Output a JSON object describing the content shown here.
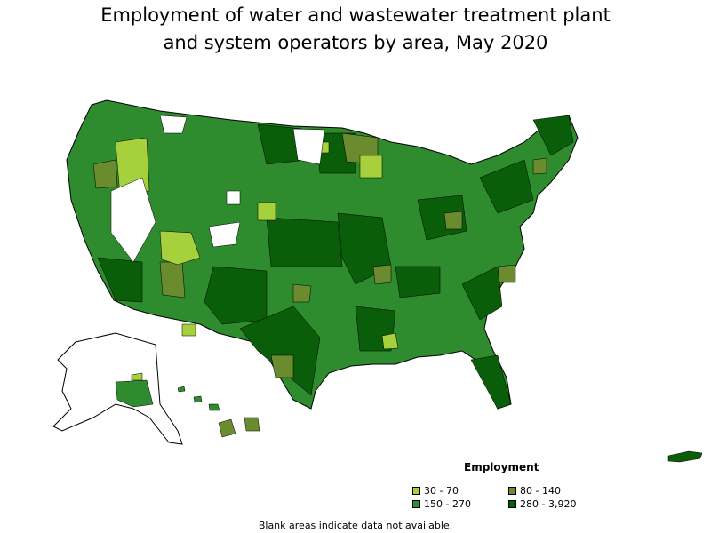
{
  "title": {
    "line1": "Employment of water and wastewater treatment plant",
    "line2": "and system operators by area, May 2020"
  },
  "legend": {
    "title": "Employment",
    "items": [
      {
        "label": "30 - 70",
        "color": "#a6d13c"
      },
      {
        "label": "80 - 140",
        "color": "#6a8c2e"
      },
      {
        "label": "150 - 270",
        "color": "#2e8b2e"
      },
      {
        "label": "280 - 3,920",
        "color": "#0a5e0a"
      }
    ]
  },
  "note": "Blank areas indicate data not available.",
  "colors": {
    "outline": "#000000",
    "no_data": "#ffffff"
  }
}
